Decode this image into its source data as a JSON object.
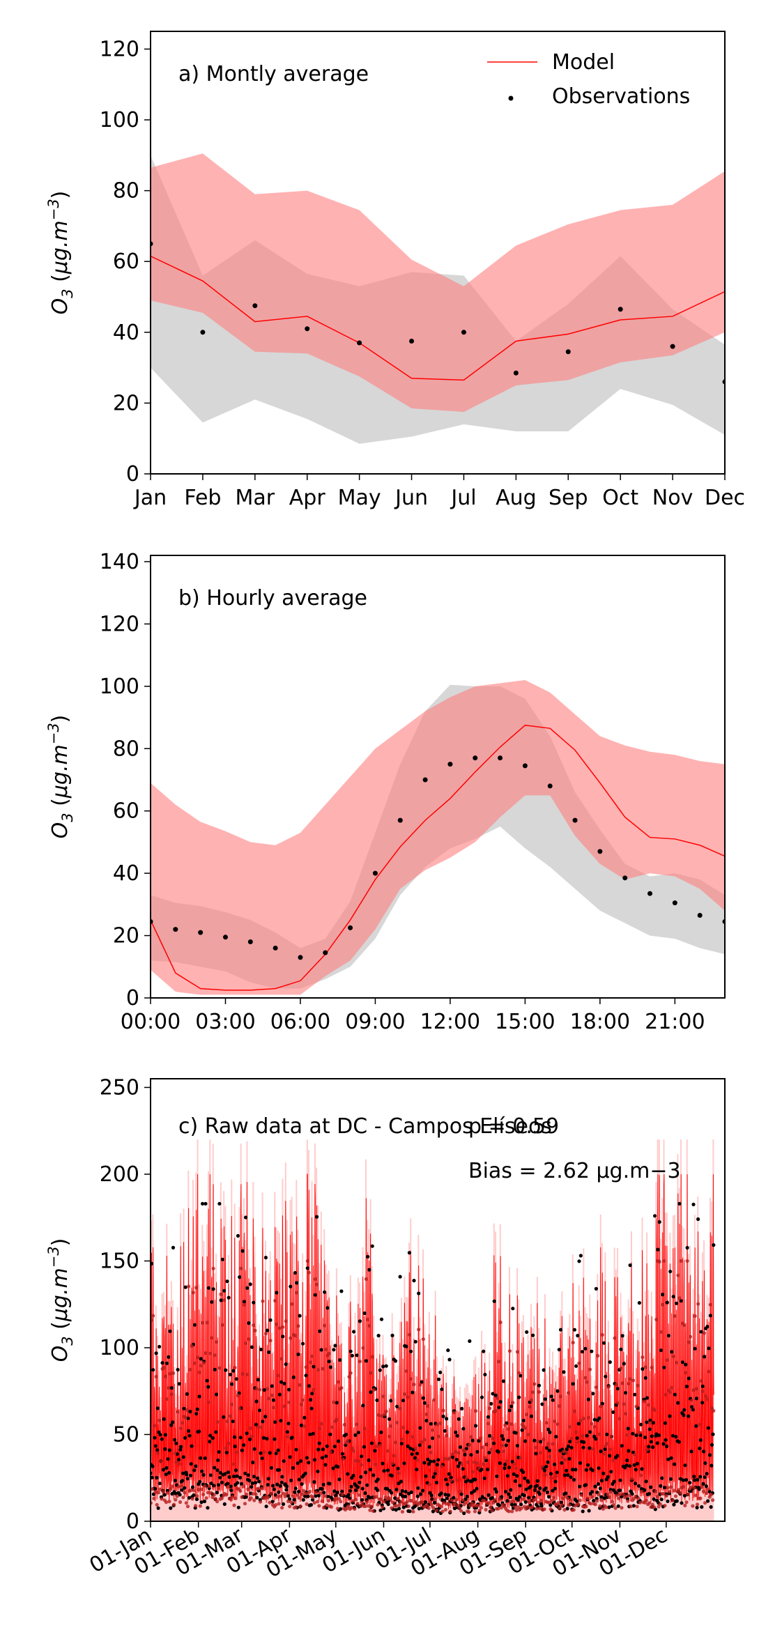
{
  "chart_data": [
    {
      "id": "monthly",
      "type": "line",
      "panel_title": "a) Montly average",
      "xlabel": "",
      "ylabel": "O3 (μg.m−3)",
      "categories": [
        "Jan",
        "Feb",
        "Mar",
        "Apr",
        "May",
        "Jun",
        "Jul",
        "Aug",
        "Sep",
        "Oct",
        "Nov",
        "Dec"
      ],
      "x_tick_labels": [
        "Jan",
        "Feb",
        "Mar",
        "Apr",
        "May",
        "Jun",
        "Jul",
        "Aug",
        "Sep",
        "Oct",
        "Nov",
        "Dec"
      ],
      "x_ticks": [
        0,
        1,
        2,
        3,
        4,
        5,
        6,
        7,
        8,
        9,
        10,
        11
      ],
      "xlim": [
        0,
        11
      ],
      "ylim": [
        0,
        125
      ],
      "yticks": [
        0,
        20,
        40,
        60,
        80,
        100,
        120
      ],
      "legend": {
        "position": "top-right",
        "entries": [
          {
            "label": "Model",
            "kind": "line",
            "color": "#ff0000"
          },
          {
            "label": "Observations",
            "kind": "dot",
            "color": "#000000"
          }
        ]
      },
      "bands": [
        {
          "role": "observations-range",
          "color": "#bdbdbd",
          "opacity": 0.6,
          "lower": [
            30,
            14.5,
            21,
            15.5,
            8.5,
            10.5,
            14,
            12,
            12,
            24,
            19.5,
            11
          ],
          "upper": [
            90,
            56,
            66,
            56.5,
            53,
            57,
            56,
            37.5,
            48,
            61.5,
            46.5,
            36.5
          ]
        },
        {
          "role": "model-range",
          "color": "#ff7f7f",
          "opacity": 0.6,
          "lower": [
            49,
            45.5,
            34.5,
            34,
            27.5,
            18.5,
            17.5,
            25,
            26.5,
            31.5,
            33.5,
            40
          ],
          "upper": [
            86.5,
            90.5,
            79,
            80,
            74.5,
            60.5,
            53,
            64.5,
            70.5,
            74.5,
            76,
            85.5
          ]
        }
      ],
      "series": [
        {
          "name": "Model",
          "kind": "line",
          "color": "#ff0000",
          "values": [
            61.5,
            54.5,
            43,
            44.5,
            37,
            27,
            26.5,
            37.5,
            39.5,
            43.5,
            44.5,
            51.5
          ]
        },
        {
          "name": "Observations",
          "kind": "dot",
          "color": "#000000",
          "values": [
            65,
            40,
            47.5,
            41,
            37,
            37.5,
            40,
            28.5,
            34.5,
            46.5,
            36,
            26
          ]
        }
      ]
    },
    {
      "id": "hourly",
      "type": "line",
      "panel_title": "b) Hourly average",
      "xlabel": "",
      "ylabel": "O3 (μg.m−3)",
      "categories": [
        "00:00",
        "01:00",
        "02:00",
        "03:00",
        "04:00",
        "05:00",
        "06:00",
        "07:00",
        "08:00",
        "09:00",
        "10:00",
        "11:00",
        "12:00",
        "13:00",
        "14:00",
        "15:00",
        "16:00",
        "17:00",
        "18:00",
        "19:00",
        "20:00",
        "21:00",
        "22:00",
        "23:00"
      ],
      "x_tick_labels": [
        "00:00",
        "03:00",
        "06:00",
        "09:00",
        "12:00",
        "15:00",
        "18:00",
        "21:00"
      ],
      "x_ticks": [
        0,
        3,
        6,
        9,
        12,
        15,
        18,
        21
      ],
      "xlim": [
        0,
        23
      ],
      "ylim": [
        0,
        142
      ],
      "yticks": [
        0,
        20,
        40,
        60,
        80,
        100,
        120,
        140
      ],
      "bands": [
        {
          "role": "observations-range",
          "color": "#bdbdbd",
          "opacity": 0.6,
          "lower": [
            12,
            11.5,
            10,
            8.5,
            5,
            3,
            3,
            6,
            10,
            19,
            33,
            42,
            48,
            51,
            55,
            48,
            42,
            35,
            28,
            24,
            20,
            19,
            16,
            14
          ],
          "upper": [
            33,
            30.5,
            29.5,
            27.5,
            25,
            21,
            16,
            19,
            31,
            53,
            75,
            92,
            100.5,
            100,
            100,
            96,
            84,
            66,
            54,
            43,
            39,
            40,
            38,
            33
          ]
        },
        {
          "role": "model-range",
          "color": "#ff7f7f",
          "opacity": 0.6,
          "lower": [
            9,
            2,
            1,
            1,
            1,
            1,
            1,
            7,
            12,
            22,
            35,
            41,
            45,
            50,
            58,
            65,
            65,
            52,
            43,
            38,
            40,
            39,
            35,
            28
          ]
        },
        {
          "role": "model-range-upper-only",
          "color": "#ff7f7f",
          "opacity": 0.6,
          "upper": [
            69,
            62,
            56.5,
            53.5,
            50,
            49,
            53,
            62,
            71,
            80,
            86,
            92,
            96.5,
            100,
            101,
            102,
            98,
            91,
            84,
            81,
            79,
            78,
            76,
            75
          ]
        }
      ],
      "series": [
        {
          "name": "Model",
          "kind": "line",
          "color": "#ff0000",
          "values": [
            25,
            8,
            3,
            2.5,
            2.5,
            3,
            5.5,
            14,
            25,
            38,
            48.5,
            57,
            64,
            72.5,
            80.5,
            87.5,
            86.5,
            79.5,
            69,
            58,
            51.5,
            51,
            49,
            45.5
          ]
        },
        {
          "name": "Observations",
          "kind": "dot",
          "color": "#000000",
          "values": [
            24.5,
            22,
            21,
            19.5,
            18,
            16,
            13,
            14.5,
            22.5,
            40,
            57,
            70,
            75,
            77,
            77,
            74.5,
            68,
            57,
            47,
            38.5,
            33.5,
            30.5,
            26.5,
            24.5
          ]
        }
      ]
    },
    {
      "id": "raw",
      "type": "line",
      "panel_title": "c) Raw data at DC - Campos Elíseos",
      "stats_lines": [
        "p = 0.59",
        "Bias = 2.62 μg.m−3"
      ],
      "xlabel": "",
      "ylabel": "O3 (μg.m−3)",
      "x_tick_labels": [
        "01-Jan",
        "01-Feb",
        "01-Mar",
        "01-Apr",
        "01-May",
        "01-Jun",
        "01-Jul",
        "01-Aug",
        "01-Sep",
        "01-Oct",
        "01-Nov",
        "01-Dec"
      ],
      "x_ticks_day_of_year": [
        0,
        31,
        59,
        90,
        120,
        151,
        181,
        212,
        243,
        273,
        304,
        334
      ],
      "xlim": [
        0,
        372
      ],
      "ylim": [
        0,
        255
      ],
      "yticks": [
        0,
        50,
        100,
        150,
        200,
        250
      ],
      "series": [
        {
          "name": "Model",
          "kind": "line",
          "color": "#ff0000",
          "description": "hourly modelled ozone for one year, values between about 0 and 200"
        },
        {
          "name": "Observations",
          "kind": "dot",
          "color": "#000000",
          "description": "hourly observed ozone for one year, values between about 0 and 185"
        }
      ]
    }
  ]
}
